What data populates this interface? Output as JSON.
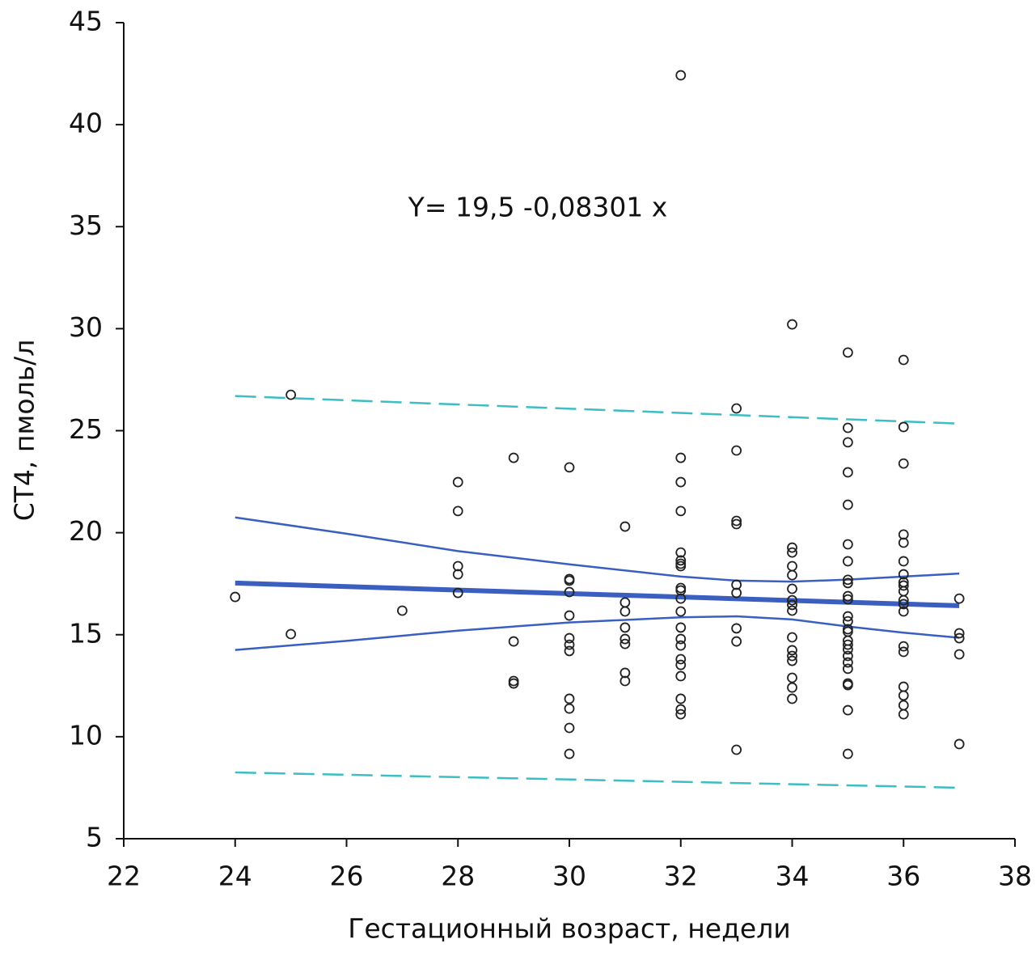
{
  "chart_data": {
    "type": "scatter",
    "x_label": "Гестационный возраст, недели",
    "y_label": "СТ4, пмоль/л",
    "annotation": "Y= 19,5 -0,08301 x",
    "xlim": [
      22,
      38
    ],
    "xticks": [
      22,
      24,
      26,
      28,
      30,
      32,
      34,
      36,
      38
    ],
    "ylim": [
      5,
      45
    ],
    "yticks": [
      5,
      10,
      15,
      20,
      25,
      30,
      35,
      40,
      45
    ],
    "grid": false,
    "marker_color": "#222222",
    "x": [
      24,
      25,
      25,
      27,
      28,
      28,
      28,
      28,
      28,
      29,
      29,
      29,
      29,
      30,
      30,
      30,
      30,
      30,
      30,
      30,
      30,
      30,
      30,
      30,
      30,
      31,
      31,
      31,
      31,
      31,
      31,
      31,
      31,
      32,
      32,
      32,
      32,
      32,
      32,
      32,
      32,
      32,
      32,
      32,
      32,
      32,
      32,
      32,
      32,
      32,
      32,
      32,
      32,
      32,
      33,
      33,
      33,
      33,
      33,
      33,
      33,
      33,
      33,
      34,
      34,
      34,
      34,
      34,
      34,
      34,
      34,
      34,
      34,
      34,
      34,
      34,
      34,
      34,
      34,
      35,
      35,
      35,
      35,
      35,
      35,
      35,
      35,
      35,
      35,
      35,
      35,
      35,
      35,
      35,
      35,
      35,
      35,
      35,
      35,
      35,
      35,
      35,
      35,
      35,
      36,
      36,
      36,
      36,
      36,
      36,
      36,
      36,
      36,
      36,
      36,
      36,
      36,
      36,
      36,
      36,
      36,
      36,
      36,
      37,
      37,
      37,
      37,
      37
    ],
    "values": [
      16.85,
      26.76,
      15.03,
      16.18,
      22.48,
      21.06,
      18.36,
      17.96,
      17.05,
      23.67,
      14.67,
      12.73,
      12.61,
      23.2,
      17.73,
      17.65,
      17.09,
      15.94,
      14.83,
      14.51,
      14.2,
      11.86,
      11.38,
      10.43,
      9.16,
      20.3,
      16.58,
      16.14,
      15.35,
      14.79,
      14.55,
      13.13,
      12.73,
      42.42,
      23.67,
      22.48,
      21.06,
      19.03,
      18.64,
      18.48,
      18.36,
      17.29,
      17.17,
      16.77,
      16.14,
      15.35,
      14.79,
      14.47,
      13.8,
      13.52,
      12.97,
      11.86,
      11.34,
      11.1,
      26.09,
      24.03,
      20.58,
      20.42,
      17.45,
      17.05,
      15.31,
      14.67,
      9.36,
      30.21,
      19.27,
      19.03,
      18.36,
      17.92,
      17.25,
      16.69,
      16.46,
      16.18,
      14.87,
      14.24,
      13.96,
      13.72,
      12.89,
      12.41,
      11.86,
      28.83,
      25.14,
      24.43,
      22.96,
      21.37,
      19.43,
      18.6,
      17.69,
      17.53,
      16.89,
      16.73,
      15.9,
      15.66,
      15.27,
      15.15,
      14.71,
      14.51,
      14.28,
      13.96,
      13.64,
      13.33,
      12.61,
      12.53,
      11.3,
      9.16,
      28.47,
      25.18,
      23.39,
      19.91,
      19.51,
      18.6,
      17.96,
      17.57,
      17.41,
      17.13,
      16.69,
      16.5,
      16.14,
      14.43,
      14.16,
      12.45,
      12.02,
      11.54,
      11.1,
      16.77,
      15.07,
      14.83,
      14.04,
      9.64
    ],
    "lines": [
      {
        "style": "bold",
        "color": "#3a5fc0",
        "x": [
          24,
          37
        ],
        "values": [
          17.53,
          16.42
        ]
      },
      {
        "style": "solid",
        "color": "#3a5fc0",
        "x": [
          24,
          26,
          28,
          30,
          32,
          33,
          34,
          35,
          36,
          37
        ],
        "values": [
          20.75,
          19.95,
          19.1,
          18.45,
          17.85,
          17.65,
          17.6,
          17.7,
          17.85,
          18.0
        ]
      },
      {
        "style": "solid",
        "color": "#3a5fc0",
        "x": [
          24,
          26,
          28,
          30,
          32,
          33,
          34,
          35,
          36,
          37
        ],
        "values": [
          14.25,
          14.7,
          15.2,
          15.6,
          15.85,
          15.9,
          15.75,
          15.4,
          15.1,
          14.85
        ]
      },
      {
        "style": "dashed",
        "color": "#3dbdc4",
        "x": [
          24,
          37
        ],
        "values": [
          26.7,
          25.35
        ]
      },
      {
        "style": "dashed",
        "color": "#3dbdc4",
        "x": [
          24,
          37
        ],
        "values": [
          8.25,
          7.5
        ]
      }
    ]
  }
}
